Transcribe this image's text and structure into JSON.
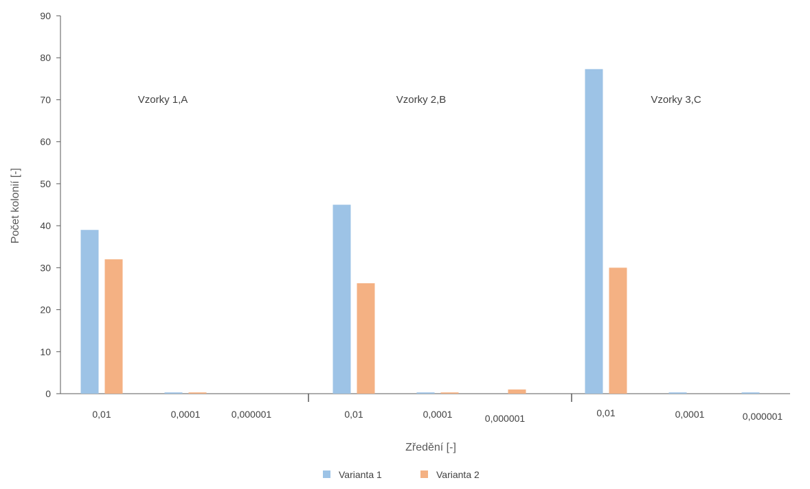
{
  "chart_data": {
    "type": "bar",
    "title": "",
    "xlabel": "Zředění [-]",
    "ylabel": "Počet kolonií [-]",
    "ylim": [
      0,
      90
    ],
    "yticks": [
      0,
      10,
      20,
      30,
      40,
      50,
      60,
      70,
      80,
      90
    ],
    "groups": [
      "Vzorky 1,A",
      "Vzorky 2,B",
      "Vzorky 3,C"
    ],
    "categories": [
      "0,01",
      "0,0001",
      "0,000001",
      "0,01",
      "0,0001",
      "0,000001",
      "0,01",
      "0,0001",
      "0,000001"
    ],
    "series": [
      {
        "name": "Varianta 1",
        "color": "#9DC3E6",
        "values": [
          39,
          0.3,
          0,
          45,
          0.3,
          0,
          77.3,
          0.3,
          0.3
        ]
      },
      {
        "name": "Varianta 2",
        "color": "#F4B183",
        "values": [
          32,
          0.3,
          0,
          26.3,
          0.3,
          1,
          30,
          0,
          0
        ]
      }
    ],
    "grid": false,
    "legend_position": "bottom"
  }
}
